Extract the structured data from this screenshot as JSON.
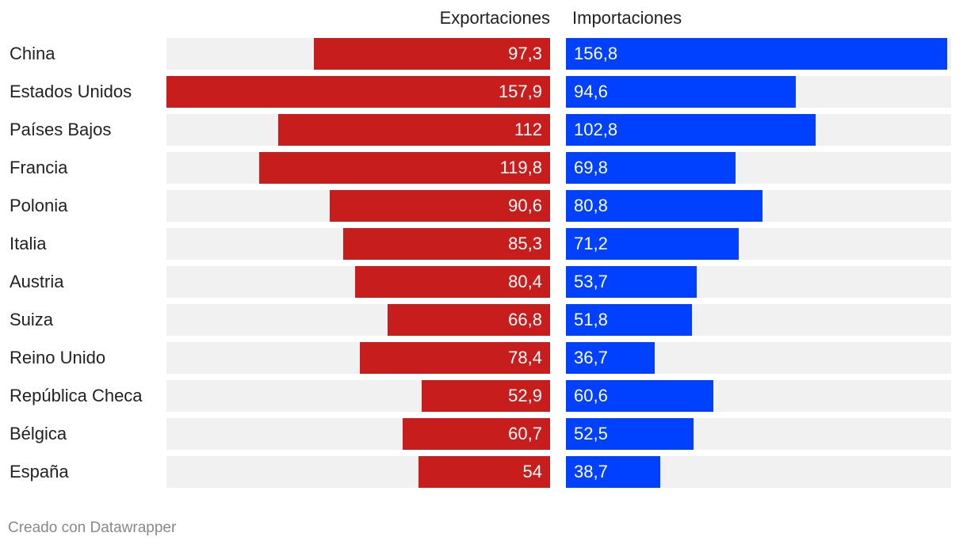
{
  "chart_data": {
    "type": "bar",
    "orientation": "horizontal",
    "categories": [
      "China",
      "Estados Unidos",
      "Países Bajos",
      "Francia",
      "Polonia",
      "Italia",
      "Austria",
      "Suiza",
      "Reino Unido",
      "República Checa",
      "Bélgica",
      "España"
    ],
    "series": [
      {
        "name": "Exportaciones",
        "values": [
          97.3,
          157.9,
          112,
          119.8,
          90.6,
          85.3,
          80.4,
          66.8,
          78.4,
          52.9,
          60.7,
          54
        ],
        "labels": [
          "97,3",
          "157,9",
          "112",
          "119,8",
          "90,6",
          "85,3",
          "80,4",
          "66,8",
          "78,4",
          "52,9",
          "60,7",
          "54"
        ],
        "color": "#c71e1d"
      },
      {
        "name": "Importaciones",
        "values": [
          156.8,
          94.6,
          102.8,
          69.8,
          80.8,
          71.2,
          53.7,
          51.8,
          36.7,
          60.6,
          52.5,
          38.7
        ],
        "labels": [
          "156,8",
          "94,6",
          "102,8",
          "69,8",
          "80,8",
          "71,2",
          "53,7",
          "51,8",
          "36,7",
          "60,6",
          "52,5",
          "38,7"
        ],
        "color": "#0040ff"
      }
    ],
    "xlim": [
      0,
      157.9
    ],
    "legend": "column headers"
  },
  "footer": "Creado con Datawrapper",
  "colors": {
    "track": "#f1f1f1",
    "label_text": "#ffffff"
  }
}
